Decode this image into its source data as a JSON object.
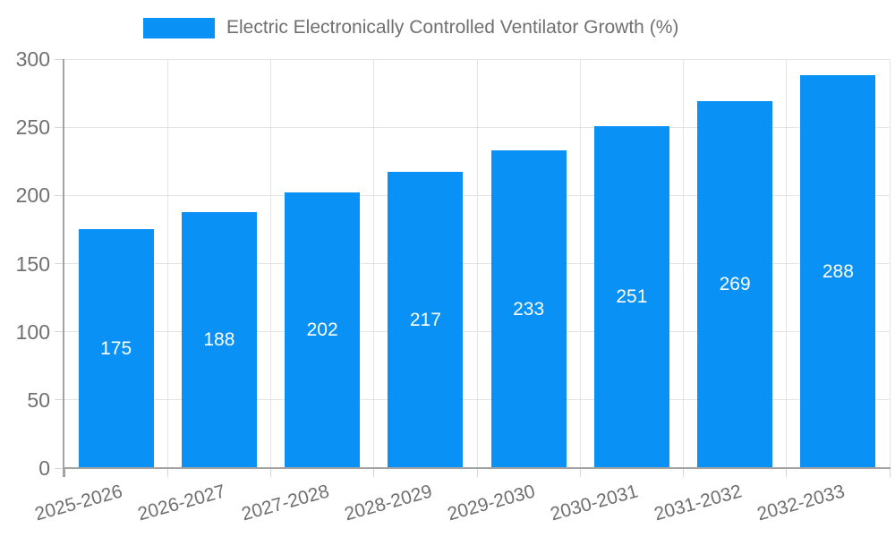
{
  "legend": {
    "label": "Electric Electronically Controlled Ventilator Growth (%)"
  },
  "colors": {
    "bar": "#0A91F5",
    "grid": "#E4E4E4",
    "axis": "#A3A3A3",
    "tick": "#D6D6D6",
    "text": "#707070",
    "bar_label": "#FFFFFF",
    "background": "#FFFFFF"
  },
  "chart_data": {
    "type": "bar",
    "title": "Electric Electronically Controlled Ventilator Growth (%)",
    "categories": [
      "2025-2026",
      "2026-2027",
      "2027-2028",
      "2028-2029",
      "2029-2030",
      "2030-2031",
      "2031-2032",
      "2032-2033"
    ],
    "values": [
      175,
      188,
      202,
      217,
      233,
      251,
      269,
      288
    ],
    "series": [
      {
        "name": "Electric Electronically Controlled Ventilator Growth (%)",
        "values": [
          175,
          188,
          202,
          217,
          233,
          251,
          269,
          288
        ]
      }
    ],
    "xlabel": "",
    "ylabel": "",
    "ylim": [
      0,
      300
    ],
    "yticks": [
      0,
      50,
      100,
      150,
      200,
      250,
      300
    ],
    "grid": true,
    "legend_position": "top-center",
    "bar_labels_visible": true,
    "bar_label_position": "inside-center",
    "x_label_rotation_deg": -15.5
  }
}
